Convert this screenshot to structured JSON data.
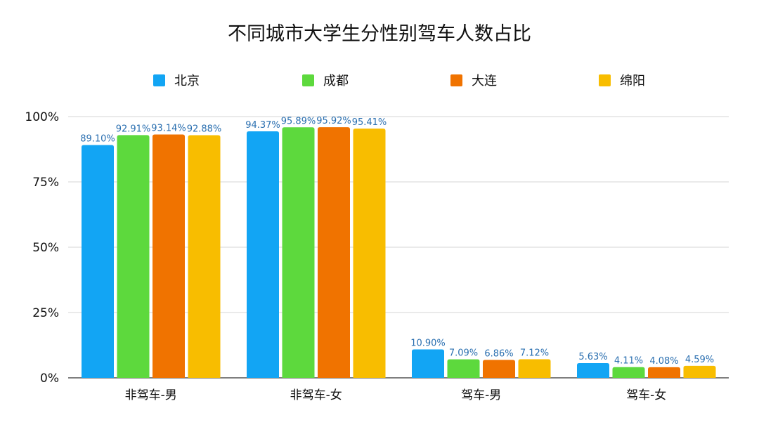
{
  "chart_data": {
    "type": "bar",
    "title": "不同城市大学生分性别驾车人数占比",
    "categories": [
      "非驾车-男",
      "非驾车-女",
      "驾车-男",
      "驾车-女"
    ],
    "series": [
      {
        "name": "北京",
        "color": "#12a5f4",
        "values": [
          89.1,
          94.37,
          10.9,
          5.63
        ],
        "labels": [
          "89.10%",
          "94.37%",
          "10.90%",
          "5.63%"
        ]
      },
      {
        "name": "成都",
        "color": "#5dd93d",
        "values": [
          92.91,
          95.89,
          7.09,
          4.11
        ],
        "labels": [
          "92.91%",
          "95.89%",
          "7.09%",
          "4.11%"
        ]
      },
      {
        "name": "大连",
        "color": "#f07300",
        "values": [
          93.14,
          95.92,
          6.86,
          4.08
        ],
        "labels": [
          "93.14%",
          "95.92%",
          "6.86%",
          "4.08%"
        ]
      },
      {
        "name": "绵阳",
        "color": "#f8bd00",
        "values": [
          92.88,
          95.41,
          7.12,
          4.59
        ],
        "labels": [
          "92.88%",
          "95.41%",
          "7.12%",
          "4.59%"
        ]
      }
    ],
    "yticks": [
      "0%",
      "25%",
      "50%",
      "75%",
      "100%"
    ],
    "ylim": [
      0,
      100
    ],
    "grid": true,
    "legend_position": "top"
  }
}
